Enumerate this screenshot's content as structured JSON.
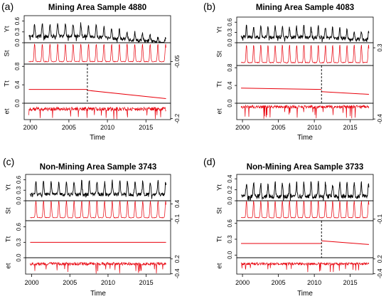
{
  "chart_data": [
    {
      "type": "line",
      "panel_letter": "(a)",
      "title": "Mining Area Sample 4880",
      "xlabel": "Time",
      "xlim": [
        1999.2,
        2018.2
      ],
      "x_ticks": [
        2000,
        2005,
        2010,
        2015
      ],
      "x_tick_labels": [
        "2000",
        "2005",
        "2010",
        "2015"
      ],
      "breakpoint_year": 2007.4,
      "components": [
        {
          "name": "Yt",
          "ylim": [
            0.0,
            0.75
          ],
          "ticks": [
            0.0,
            0.3,
            0.6
          ],
          "tick_labels": [
            "0.0",
            "0.3",
            "0.6"
          ],
          "axis_side": "left",
          "color": "#000000",
          "model": {
            "baseline": 0.3,
            "amp": 0.35,
            "amp_end": 0.12,
            "trend_break": 2007.4,
            "trend_end": 0.12,
            "noise": 0.05
          }
        },
        {
          "name": "St",
          "ylim": [
            -0.12,
            0.48
          ],
          "ticks": [
            -0.05
          ],
          "tick_labels": [
            "-0.05"
          ],
          "axis_side": "right",
          "color": "#e8000b",
          "model": {
            "amp": 0.5,
            "noise": 0.01
          }
        },
        {
          "name": "Tt",
          "ylim": [
            0.0,
            0.85
          ],
          "ticks": [
            0.0,
            0.4,
            0.8
          ],
          "tick_labels": [
            "0.0",
            "0.4",
            "0.8"
          ],
          "axis_side": "left",
          "color": "#e8000b",
          "segments": [
            {
              "x": [
                1999.8,
                2007.4
              ],
              "y": [
                0.3,
                0.3
              ]
            },
            {
              "x": [
                2007.4,
                2017.6
              ],
              "y": [
                0.28,
                0.1
              ]
            }
          ]
        },
        {
          "name": "et",
          "ylim": [
            -0.22,
            0.12
          ],
          "ticks": [
            -0.2
          ],
          "tick_labels": [
            "-0.2"
          ],
          "axis_side": "right",
          "color": "#e8000b",
          "model": {
            "noise": 0.04,
            "spikes": 18
          }
        }
      ]
    },
    {
      "type": "line",
      "panel_letter": "(b)",
      "title": "Mining Area Sample 4083",
      "xlabel": "Time",
      "xlim": [
        1999.2,
        2018.2
      ],
      "x_ticks": [
        2000,
        2005,
        2010,
        2015
      ],
      "x_tick_labels": [
        "2000",
        "2005",
        "2010",
        "2015"
      ],
      "breakpoint_year": 2011.0,
      "components": [
        {
          "name": "Yt",
          "ylim": [
            0.0,
            0.75
          ],
          "ticks": [
            0.0,
            0.3,
            0.6
          ],
          "tick_labels": [
            "0.0",
            "0.3",
            "0.6"
          ],
          "axis_side": "left",
          "color": "#000000",
          "model": {
            "baseline": 0.28,
            "amp": 0.33,
            "amp_end": 0.22,
            "trend_break": 2011.0,
            "trend_end": 0.2,
            "noise": 0.05
          }
        },
        {
          "name": "St",
          "ylim": [
            -0.12,
            0.42
          ],
          "ticks": [
            0.3
          ],
          "tick_labels": [
            "0.3"
          ],
          "axis_side": "right",
          "color": "#e8000b",
          "model": {
            "amp": 0.42,
            "noise": 0.01
          }
        },
        {
          "name": "Tt",
          "ylim": [
            0.0,
            0.85
          ],
          "ticks": [
            0.0,
            0.4,
            0.8
          ],
          "tick_labels": [
            "0.0",
            "0.4",
            "0.8"
          ],
          "axis_side": "left",
          "color": "#e8000b",
          "segments": [
            {
              "x": [
                1999.8,
                2011.0
              ],
              "y": [
                0.34,
                0.31
              ]
            },
            {
              "x": [
                2011.0,
                2017.6
              ],
              "y": [
                0.26,
                0.2
              ]
            }
          ]
        },
        {
          "name": "et",
          "ylim": [
            -0.42,
            0.12
          ],
          "ticks": [
            -0.4
          ],
          "tick_labels": [
            "-0.4"
          ],
          "axis_side": "right",
          "color": "#e8000b",
          "model": {
            "noise": 0.05,
            "spikes": 22
          }
        }
      ]
    },
    {
      "type": "line",
      "panel_letter": "(c)",
      "title": "Non-Mining Area Sample 3743",
      "xlabel": "Time",
      "xlim": [
        1999.2,
        2018.2
      ],
      "x_ticks": [
        2000,
        2005,
        2010,
        2015
      ],
      "x_tick_labels": [
        "2000",
        "2005",
        "2010",
        "2015"
      ],
      "breakpoint_year": null,
      "components": [
        {
          "name": "Yt",
          "ylim": [
            0.0,
            0.75
          ],
          "ticks": [
            0.0,
            0.3,
            0.6
          ],
          "tick_labels": [
            "0.0",
            "0.3",
            "0.6"
          ],
          "axis_side": "left",
          "color": "#000000",
          "model": {
            "baseline": 0.3,
            "amp": 0.38,
            "amp_end": 0.38,
            "trend_break": null,
            "trend_end": 0.3,
            "noise": 0.05
          }
        },
        {
          "name": "St",
          "ylim": [
            -0.15,
            0.5
          ],
          "ticks": [
            -0.1,
            0.4
          ],
          "tick_labels": [
            "-0.1",
            "0.4"
          ],
          "axis_side": "right",
          "color": "#e8000b",
          "model": {
            "amp": 0.55,
            "noise": 0.01
          }
        },
        {
          "name": "Tt",
          "ylim": [
            0.0,
            0.72
          ],
          "ticks": [
            0.0,
            0.3,
            0.6
          ],
          "tick_labels": [
            "0.0",
            "0.3",
            "0.6"
          ],
          "axis_side": "left",
          "color": "#e8000b",
          "segments": [
            {
              "x": [
                1999.8,
                2017.6
              ],
              "y": [
                0.3,
                0.3
              ]
            }
          ]
        },
        {
          "name": "et",
          "ylim": [
            -0.42,
            0.25
          ],
          "ticks": [
            -0.4,
            0.2
          ],
          "tick_labels": [
            "-0.4",
            "0.2"
          ],
          "axis_side": "right",
          "color": "#e8000b",
          "model": {
            "noise": 0.06,
            "spikes": 20
          }
        }
      ]
    },
    {
      "type": "line",
      "panel_letter": "(d)",
      "title": "Non-Mining Area Sample 3733",
      "xlabel": "Time",
      "xlim": [
        1999.2,
        2018.2
      ],
      "x_ticks": [
        2000,
        2005,
        2010,
        2015
      ],
      "x_tick_labels": [
        "2000",
        "2005",
        "2010",
        "2015"
      ],
      "breakpoint_year": 2011.0,
      "components": [
        {
          "name": "Yt",
          "ylim": [
            0.0,
            0.48
          ],
          "ticks": [
            0.0,
            0.2,
            0.4
          ],
          "tick_labels": [
            "0.0",
            "0.2",
            "0.4"
          ],
          "axis_side": "left",
          "color": "#000000",
          "model": {
            "baseline": 0.2,
            "amp": 0.25,
            "amp_end": 0.25,
            "trend_break": 2011.0,
            "trend_end": 0.2,
            "noise": 0.04
          }
        },
        {
          "name": "St",
          "ylim": [
            -0.15,
            0.5
          ],
          "ticks": [
            -0.1
          ],
          "tick_labels": [
            "-0.1"
          ],
          "axis_side": "right",
          "color": "#e8000b",
          "model": {
            "amp": 0.55,
            "noise": 0.01
          }
        },
        {
          "name": "Tt",
          "ylim": [
            -0.05,
            0.65
          ],
          "ticks": [
            0.0,
            0.3,
            0.6
          ],
          "tick_labels": [
            "0.0",
            "0.3",
            "0.6"
          ],
          "axis_side": "left",
          "color": "#e8000b",
          "segments": [
            {
              "x": [
                1999.8,
                2011.0
              ],
              "y": [
                0.22,
                0.22
              ]
            },
            {
              "x": [
                2011.0,
                2017.6
              ],
              "y": [
                0.27,
                0.2
              ]
            }
          ]
        },
        {
          "name": "et",
          "ylim": [
            -0.42,
            0.25
          ],
          "ticks": [
            -0.4,
            0.2
          ],
          "tick_labels": [
            "-0.4",
            "0.2"
          ],
          "axis_side": "right",
          "color": "#e8000b",
          "model": {
            "noise": 0.05,
            "spikes": 18
          }
        }
      ]
    }
  ]
}
